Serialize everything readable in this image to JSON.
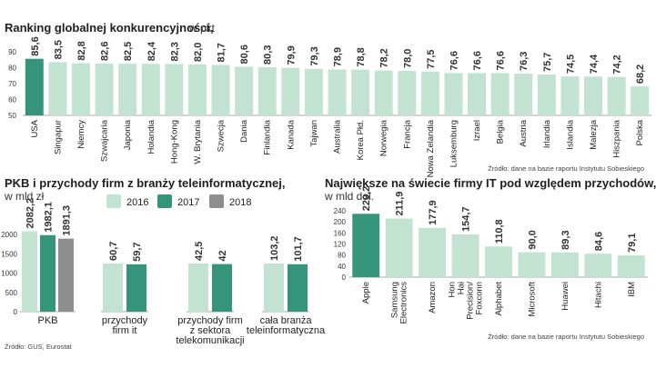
{
  "colors": {
    "bar_light": "#c2e2d2",
    "bar_dark": "#34957a",
    "bar_gray": "#8e8e8e",
    "axis": "#aaaaaa",
    "text": "#222222"
  },
  "chart_data": [
    {
      "id": "ranking",
      "type": "bar",
      "title": "Ranking globalnej konkurencyjności,",
      "unit": "w pkt",
      "categories": [
        "USA",
        "Singapur",
        "Niemcy",
        "Szwajcaria",
        "Japonia",
        "Holandia",
        "Hong-Kong",
        "W. Brytania",
        "Szwecja",
        "Dania",
        "Finlandia",
        "Kanada",
        "Tajwan",
        "Australia",
        "Korea Płd.",
        "Norwegia",
        "Francja",
        "Nowa Zelandia",
        "Luksemburg",
        "Izrael",
        "Belgia",
        "Austria",
        "Irlandia",
        "Islandia",
        "Malezja",
        "Hiszpania",
        "Polska"
      ],
      "values": [
        85.6,
        83.5,
        82.8,
        82.6,
        82.5,
        82.4,
        82.3,
        82.0,
        81.7,
        80.6,
        80.3,
        79.9,
        79.3,
        78.9,
        78.8,
        78.2,
        78.0,
        77.5,
        76.6,
        76.6,
        76.6,
        76.3,
        75.7,
        74.5,
        74.4,
        74.2,
        68.2
      ],
      "value_labels": [
        "85,6",
        "83,5",
        "82,8",
        "82,6",
        "82,5",
        "82,4",
        "82,3",
        "82,0",
        "81,7",
        "80,6",
        "80,3",
        "79,9",
        "79,3",
        "78,9",
        "78,8",
        "78,2",
        "78,0",
        "77,5",
        "76,6",
        "76,6",
        "76,6",
        "76,3",
        "75,7",
        "74,5",
        "74,4",
        "74,2",
        "68,2"
      ],
      "highlight": [
        0
      ],
      "ylim": [
        50,
        90
      ],
      "yticks": [
        50,
        60,
        70,
        80,
        90
      ],
      "source": "Źródło: dane na bazie raportu Instytutu Sobieskiego"
    },
    {
      "id": "pkb",
      "type": "bar",
      "title": "PKB i przychody firm z branży teleinformatycznej,",
      "unit": "w mld zł",
      "legend": [
        "2016",
        "2017",
        "2018"
      ],
      "groups": [
        {
          "label": "PKB",
          "values": [
            2082.2,
            1982.1,
            1891.3
          ],
          "value_labels": [
            "2082,2",
            "1982,1",
            "1891,3"
          ]
        },
        {
          "label": "przychody firm it",
          "values": [
            60.7,
            59.7
          ],
          "value_labels": [
            "60,7",
            "59,7"
          ]
        },
        {
          "label": "przychody firm z sektora telekomunikacji",
          "values": [
            42.5,
            42
          ],
          "value_labels": [
            "42,5",
            "42"
          ]
        },
        {
          "label": "cała branża teleinformatyczna",
          "values": [
            103.2,
            101.7
          ],
          "value_labels": [
            "103,2",
            "101,7"
          ]
        }
      ],
      "yticks": [
        0,
        500,
        1000,
        1500,
        2000
      ],
      "source": "Źródło: GUS, Eurostat"
    },
    {
      "id": "it_firms",
      "type": "bar",
      "title": "Największe na świecie firmy IT pod względem przychodów,",
      "unit": "w mld dol.",
      "categories": [
        "Apple",
        "Samsung Electronics",
        "Amazon",
        "Hon Hai Precision/ Foxconn",
        "Alphabet",
        "Microsoft",
        "Huawei",
        "Hitachi",
        "IBM"
      ],
      "values": [
        229.2,
        211.9,
        177.9,
        154.7,
        110.8,
        90.0,
        89.3,
        84.6,
        79.1
      ],
      "value_labels": [
        "229,2",
        "211,9",
        "177,9",
        "154,7",
        "110,8",
        "90,0",
        "89,3",
        "84,6",
        "79,1"
      ],
      "highlight": [
        0
      ],
      "ylim": [
        0,
        240
      ],
      "yticks": [
        0,
        40,
        80,
        120,
        160,
        200,
        240
      ],
      "source": "Źródło: dane na bazie raportu Instytutu Sobieskiego"
    }
  ]
}
